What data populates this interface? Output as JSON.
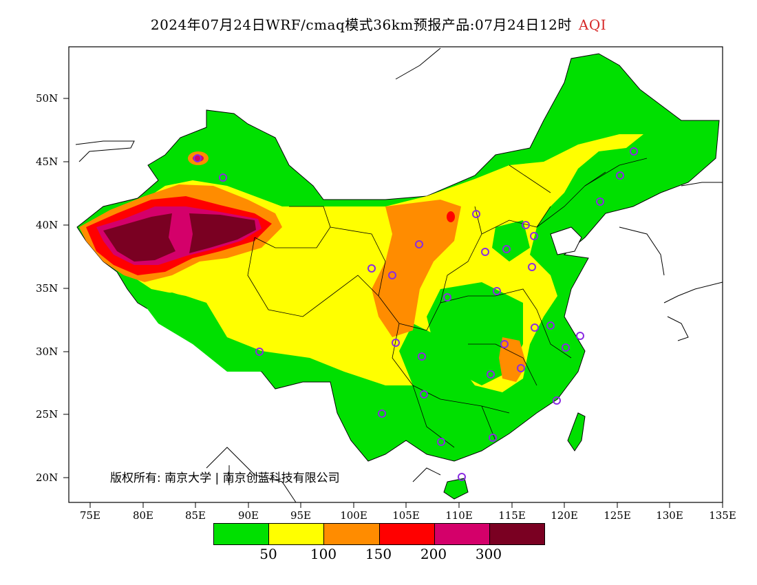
{
  "title": {
    "main": "2024年07月24日WRF/cmaq模式36km预报产品:07月24日12时",
    "variable": "AQI"
  },
  "axes": {
    "lat_labels": [
      "50N",
      "45N",
      "40N",
      "35N",
      "30N",
      "25N",
      "20N"
    ],
    "lon_labels": [
      "75E",
      "80E",
      "85E",
      "90E",
      "95E",
      "100E",
      "105E",
      "110E",
      "115E",
      "120E",
      "125E",
      "130E",
      "135E"
    ]
  },
  "copyright": "版权所有: 南京大学 | 南京创蓝科技有限公司",
  "legend": {
    "colors": [
      "#00e000",
      "#ffff00",
      "#ff8c00",
      "#ff0000",
      "#d4006a",
      "#7a0022"
    ],
    "labels": [
      "50",
      "100",
      "150",
      "200",
      "300"
    ]
  },
  "map_colors": {
    "good": "#00e000",
    "moderate": "#ffff00",
    "sensitive": "#ff8c00",
    "unhealthy": "#ff0000",
    "very_unhealthy": "#d4006a",
    "hazardous": "#7a0022",
    "station_marker": "#8a2be2"
  }
}
